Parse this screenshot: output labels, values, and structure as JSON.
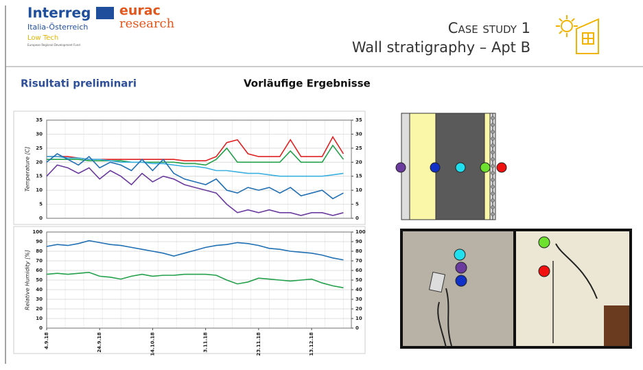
{
  "header": {
    "logo_main": "Interreg",
    "logo_region": "Italia-Österreich",
    "logo_program": "Low Tech",
    "logo_fund": "European Regional Development Fund",
    "partner_1": "eurac",
    "partner_2": "research",
    "title_1": "Case study 1",
    "title_2": "Wall stratigraphy – Apt B"
  },
  "section": {
    "left": "Risultati preliminari",
    "right": "Vorläufige Ergebnisse"
  },
  "chart_data": [
    {
      "type": "line",
      "y_label": "Temperature [C]",
      "x": [
        "2018-09-04",
        "2018-09-08",
        "2018-09-12",
        "2018-09-16",
        "2018-09-20",
        "2018-09-24",
        "2018-09-28",
        "2018-10-02",
        "2018-10-06",
        "2018-10-10",
        "2018-10-14",
        "2018-10-18",
        "2018-10-22",
        "2018-10-26",
        "2018-10-30",
        "2018-11-03",
        "2018-11-07",
        "2018-11-11",
        "2018-11-15",
        "2018-11-19",
        "2018-11-23",
        "2018-11-27",
        "2018-12-01",
        "2018-12-05",
        "2018-12-09",
        "2018-12-13",
        "2018-12-17",
        "2018-12-21",
        "2018-12-25"
      ],
      "xlim": [
        "2018-09-04",
        "2018-12-28"
      ],
      "ylim": [
        0,
        35
      ],
      "yticks": [
        0,
        5,
        10,
        15,
        20,
        25,
        30,
        35
      ],
      "y2lim": [
        0,
        35
      ],
      "y2ticks": [
        0,
        5,
        10,
        15,
        20,
        25,
        30,
        35
      ],
      "grid": true,
      "series": [
        {
          "color": "#e02020",
          "values": [
            22,
            22,
            22,
            21.5,
            21,
            21,
            21,
            21,
            21,
            21,
            21,
            21,
            21,
            20.5,
            20.5,
            20.5,
            22,
            27,
            28,
            23,
            22,
            22,
            22,
            28,
            22,
            22,
            22,
            29,
            23
          ]
        },
        {
          "color": "#22a04a",
          "values": [
            21,
            21,
            21,
            21,
            20.5,
            20.5,
            20.5,
            20.5,
            20,
            20,
            20,
            20,
            20,
            19.5,
            19.5,
            19,
            21,
            25,
            20,
            20,
            20,
            20,
            20,
            24,
            20,
            20,
            20,
            26,
            21
          ]
        },
        {
          "color": "#3ab0e0",
          "values": [
            22,
            22,
            21.5,
            21.5,
            21,
            21,
            20.5,
            20,
            20,
            20,
            19.5,
            19.5,
            19,
            18.5,
            18.5,
            18,
            17,
            17,
            16.5,
            16,
            16,
            15.5,
            15,
            15,
            15,
            15,
            15,
            15.5,
            16
          ]
        },
        {
          "color": "#1f6fb4",
          "values": [
            20,
            23,
            21,
            19,
            22,
            18,
            20,
            19,
            17,
            21,
            17,
            21,
            16,
            14,
            13,
            12,
            14,
            10,
            9,
            11,
            10,
            11,
            9,
            11,
            8,
            9,
            10,
            7,
            9
          ]
        },
        {
          "color": "#6b3a9e",
          "values": [
            15,
            19,
            18,
            16,
            18,
            14,
            17,
            15,
            12,
            16,
            13,
            15,
            14,
            12,
            11,
            10,
            9,
            5,
            2,
            3,
            2,
            3,
            2,
            2,
            1,
            2,
            2,
            1,
            2
          ]
        }
      ]
    },
    {
      "type": "line",
      "y_label": "Relative Humidity [%]",
      "x": [
        "2018-09-04",
        "2018-09-08",
        "2018-09-12",
        "2018-09-16",
        "2018-09-20",
        "2018-09-24",
        "2018-09-28",
        "2018-10-02",
        "2018-10-06",
        "2018-10-10",
        "2018-10-14",
        "2018-10-18",
        "2018-10-22",
        "2018-10-26",
        "2018-10-30",
        "2018-11-03",
        "2018-11-07",
        "2018-11-11",
        "2018-11-15",
        "2018-11-19",
        "2018-11-23",
        "2018-11-27",
        "2018-12-01",
        "2018-12-05",
        "2018-12-09",
        "2018-12-13",
        "2018-12-17",
        "2018-12-21",
        "2018-12-25"
      ],
      "xlim": [
        "2018-09-04",
        "2018-12-28"
      ],
      "xticks": [
        {
          "value": "2018-09-04",
          "label": "4.9.18"
        },
        {
          "value": "2018-09-24",
          "label": "24.9.18"
        },
        {
          "value": "2018-10-14",
          "label": "14.10.18"
        },
        {
          "value": "2018-11-03",
          "label": "3.11.18"
        },
        {
          "value": "2018-11-23",
          "label": "23.11.18"
        },
        {
          "value": "2018-12-13",
          "label": "13.12.18"
        }
      ],
      "ylim": [
        0,
        100
      ],
      "yticks": [
        0,
        10,
        20,
        30,
        40,
        50,
        60,
        70,
        80,
        90,
        100
      ],
      "y2lim": [
        0,
        100
      ],
      "y2ticks": [
        0,
        10,
        20,
        30,
        40,
        50,
        60,
        70,
        80,
        90,
        100
      ],
      "grid": true,
      "series": [
        {
          "color": "#1f6fb4",
          "values": [
            85,
            87,
            86,
            88,
            91,
            89,
            87,
            86,
            84,
            82,
            80,
            78,
            75,
            78,
            81,
            84,
            86,
            87,
            89,
            88,
            86,
            83,
            82,
            80,
            79,
            78,
            76,
            73,
            71
          ]
        },
        {
          "color": "#22a04a",
          "values": [
            56,
            57,
            56,
            57,
            58,
            54,
            53,
            51,
            54,
            56,
            54,
            55,
            55,
            56,
            56,
            56,
            55,
            50,
            46,
            48,
            52,
            51,
            50,
            49,
            50,
            51,
            47,
            44,
            42
          ]
        }
      ]
    }
  ]
}
